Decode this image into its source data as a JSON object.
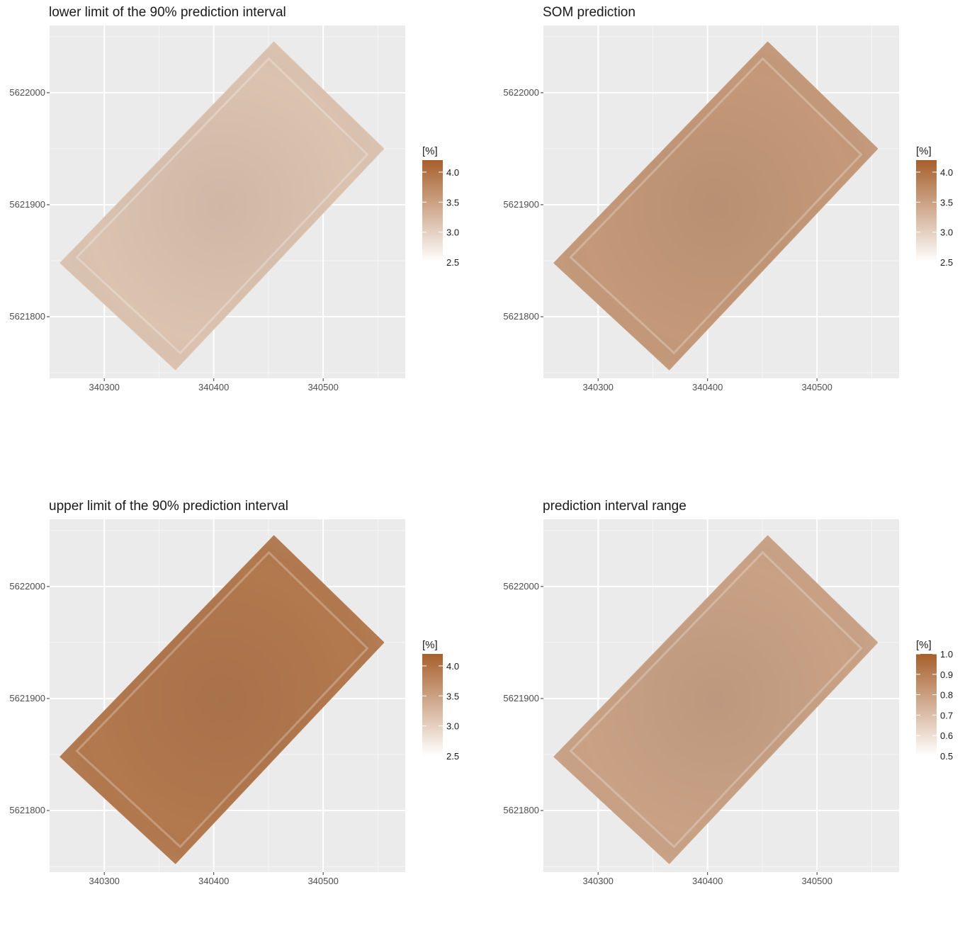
{
  "chart_data": [
    {
      "type": "heatmap",
      "title": "lower limit of the 90% prediction interval",
      "xlabel": "",
      "ylabel": "",
      "xlim": [
        340250,
        340575
      ],
      "ylim": [
        5621745,
        5622060
      ],
      "x_ticks": [
        "340300",
        "340400",
        "340500"
      ],
      "y_ticks": [
        "5621800",
        "5621900",
        "5622000"
      ],
      "field_corners": [
        [
          340260,
          5621848
        ],
        [
          340455,
          5622045
        ],
        [
          340555,
          5621950
        ],
        [
          340365,
          5621753
        ]
      ],
      "mean_value": 3.1,
      "legend": {
        "title": "[%]",
        "min": 2.5,
        "max": 4.2,
        "labels": [
          "4.0",
          "3.5",
          "3.0",
          "2.5"
        ],
        "low_color": "#ffffff",
        "high_color": "#a65f2b"
      }
    },
    {
      "type": "heatmap",
      "title": "SOM prediction",
      "xlabel": "",
      "ylabel": "",
      "xlim": [
        340250,
        340575
      ],
      "ylim": [
        5621745,
        5622060
      ],
      "x_ticks": [
        "340300",
        "340400",
        "340500"
      ],
      "y_ticks": [
        "5621800",
        "5621900",
        "5622000"
      ],
      "field_corners": [
        [
          340260,
          5621848
        ],
        [
          340455,
          5622045
        ],
        [
          340555,
          5621950
        ],
        [
          340365,
          5621753
        ]
      ],
      "mean_value": 3.55,
      "legend": {
        "title": "[%]",
        "min": 2.5,
        "max": 4.2,
        "labels": [
          "4.0",
          "3.5",
          "3.0",
          "2.5"
        ],
        "low_color": "#ffffff",
        "high_color": "#a65f2b"
      }
    },
    {
      "type": "heatmap",
      "title": "upper limit of the 90% prediction interval",
      "xlabel": "",
      "ylabel": "",
      "xlim": [
        340250,
        340575
      ],
      "ylim": [
        5621745,
        5622060
      ],
      "x_ticks": [
        "340300",
        "340400",
        "340500"
      ],
      "y_ticks": [
        "5621800",
        "5621900",
        "5622000"
      ],
      "field_corners": [
        [
          340260,
          5621848
        ],
        [
          340455,
          5622045
        ],
        [
          340555,
          5621950
        ],
        [
          340365,
          5621753
        ]
      ],
      "mean_value": 3.9,
      "legend": {
        "title": "[%]",
        "min": 2.5,
        "max": 4.2,
        "labels": [
          "4.0",
          "3.5",
          "3.0",
          "2.5"
        ],
        "low_color": "#ffffff",
        "high_color": "#a65f2b"
      }
    },
    {
      "type": "heatmap",
      "title": "prediction interval range",
      "xlabel": "",
      "ylabel": "",
      "xlim": [
        340250,
        340575
      ],
      "ylim": [
        5621745,
        5622060
      ],
      "x_ticks": [
        "340300",
        "340400",
        "340500"
      ],
      "y_ticks": [
        "5621800",
        "5621900",
        "5622000"
      ],
      "field_corners": [
        [
          340260,
          5621848
        ],
        [
          340455,
          5622045
        ],
        [
          340555,
          5621950
        ],
        [
          340365,
          5621753
        ]
      ],
      "mean_value": 0.78,
      "legend": {
        "title": "[%]",
        "min": 0.5,
        "max": 1.0,
        "labels": [
          "1.0",
          "0.9",
          "0.8",
          "0.7",
          "0.6",
          "0.5"
        ],
        "low_color": "#ffffff",
        "high_color": "#a65f2b"
      }
    }
  ]
}
